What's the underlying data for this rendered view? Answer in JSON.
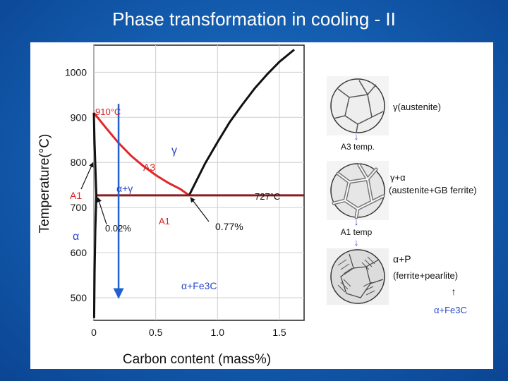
{
  "slide": {
    "title": "Phase transformation in cooling - II"
  },
  "colors": {
    "background": "#1560b3",
    "title_text": "#ffffff",
    "phase_line_black": "#111111",
    "phase_line_red": "#e0282b",
    "eutectoid_line": "#8b1a1a",
    "cooling_arrow": "#1f5fd0",
    "label_blue": "#2a48c8",
    "label_red": "#d62020"
  },
  "chart_data": {
    "type": "phase-diagram",
    "xlabel": "Carbon content (mass%)",
    "ylabel": "Temperature(°C)",
    "xlim": [
      0,
      1.7
    ],
    "ylim": [
      450,
      1060
    ],
    "x_ticks": [
      {
        "value": 0,
        "label": "0"
      },
      {
        "value": 0.5,
        "label": "0.5"
      },
      {
        "value": 1.0,
        "label": "1.0"
      },
      {
        "value": 1.5,
        "label": "1.5"
      }
    ],
    "y_ticks": [
      {
        "value": 500,
        "label": "500"
      },
      {
        "value": 600,
        "label": "600"
      },
      {
        "value": 700,
        "label": "700"
      },
      {
        "value": 800,
        "label": "800"
      },
      {
        "value": 900,
        "label": "900"
      },
      {
        "value": 1000,
        "label": "1000"
      }
    ],
    "grid": true,
    "series": [
      {
        "key": "a3",
        "color": "red",
        "points": [
          [
            0,
            910
          ],
          [
            0.1,
            876
          ],
          [
            0.2,
            843
          ],
          [
            0.3,
            815
          ],
          [
            0.4,
            792
          ],
          [
            0.5,
            772
          ],
          [
            0.6,
            755
          ],
          [
            0.7,
            741
          ],
          [
            0.77,
            727
          ]
        ]
      },
      {
        "key": "acm",
        "color": "black",
        "points": [
          [
            0.77,
            727
          ],
          [
            0.9,
            798
          ],
          [
            1.0,
            845
          ],
          [
            1.1,
            890
          ],
          [
            1.2,
            928
          ],
          [
            1.3,
            964
          ],
          [
            1.4,
            995
          ],
          [
            1.5,
            1023
          ],
          [
            1.62,
            1050
          ]
        ]
      },
      {
        "key": "a1",
        "color": "darkred",
        "points": [
          [
            0.02,
            727
          ],
          [
            1.7,
            727
          ]
        ]
      },
      {
        "key": "ferrite-solvus",
        "color": "black",
        "points": [
          [
            0.02,
            727
          ],
          [
            0.012,
            650
          ],
          [
            0.006,
            560
          ],
          [
            0.002,
            455
          ]
        ]
      },
      {
        "key": "alpha-upper",
        "color": "black",
        "points": [
          [
            0,
            910
          ],
          [
            0.005,
            850
          ],
          [
            0.02,
            727
          ]
        ]
      }
    ],
    "cooling_path": {
      "x": 0.2,
      "from": 930,
      "to": 500
    },
    "annotations": {
      "t910": "910°C",
      "gamma": "γ",
      "a3": "A3",
      "alpha_gamma": "α+γ",
      "a1_left": "A1",
      "alpha": "α",
      "t727": "727°C",
      "c002": "0.02%",
      "a1_bottom": "A1",
      "c077": "0.77%",
      "alpha_fe3c": "α+Fe3C"
    }
  },
  "microstructure": {
    "stage1_label": "γ(austenite)",
    "step1_label": "A3 temp.",
    "stage2_label_line1": "γ+α",
    "stage2_label_line2": "(austenite+GB ferrite)",
    "step2_label": "A1 temp",
    "stage3_label_line1": "α+P",
    "stage3_label_line2": "(ferrite+pearlite)",
    "stage3_note": "α+Fe3C"
  }
}
